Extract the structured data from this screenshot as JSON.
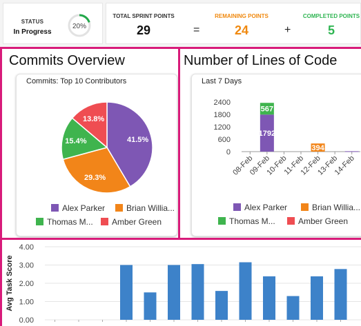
{
  "status": {
    "caption": "STATUS",
    "value": "In Progress",
    "progress_percent": 20,
    "progress_label": "20%",
    "ring_color": "#22a84a"
  },
  "points": {
    "total_caption": "TOTAL SPRINT POINTS",
    "total_value": "29",
    "equals": "=",
    "remaining_caption": "REMAINING POINTS",
    "remaining_value": "24",
    "plus": "+",
    "completed_caption": "COMPLETED POINTS",
    "completed_value": "5",
    "remaining_color": "#f0890f",
    "completed_color": "#2fb552"
  },
  "commits_panel": {
    "title": "Commits Overview",
    "card_title": "Commits: Top 10 Contributors",
    "legend": [
      {
        "label": "Alex Parker",
        "color": "#7e57b4"
      },
      {
        "label": "Brian Willia...",
        "color": "#f28519"
      },
      {
        "label": "Thomas M...",
        "color": "#3fb44e"
      },
      {
        "label": "Amber Green",
        "color": "#ef4d52"
      }
    ]
  },
  "lines_panel": {
    "title": "Number of Lines of Code",
    "card_title": "Last 7 Days",
    "legend": [
      {
        "label": "Alex Parker",
        "color": "#7e57b4"
      },
      {
        "label": "Brian Willia...",
        "color": "#f28519"
      },
      {
        "label": "Thomas M...",
        "color": "#3fb44e"
      },
      {
        "label": "Amber Green",
        "color": "#ef4d52"
      }
    ]
  },
  "chart_data": [
    {
      "type": "pie",
      "title": "Commits: Top 10 Contributors",
      "categories": [
        "Alex Parker",
        "Brian Willia...",
        "Thomas M...",
        "Amber Green"
      ],
      "values": [
        41.5,
        29.3,
        15.4,
        13.8
      ],
      "labels": [
        "41.5%",
        "29.3%",
        "15.4%",
        "13.8%"
      ],
      "colors": [
        "#7e57b4",
        "#f28519",
        "#3fb44e",
        "#ef4d52"
      ],
      "legend": "bottom"
    },
    {
      "type": "bar",
      "title": "Last 7 Days",
      "categories": [
        "08-Feb",
        "09-Feb",
        "10-Feb",
        "11-Feb",
        "12-Feb",
        "13-Feb",
        "14-Feb"
      ],
      "stacked": true,
      "series": [
        {
          "name": "Alex Parker",
          "color": "#7e57b4",
          "values": [
            0,
            1792,
            0,
            0,
            0,
            0,
            20
          ]
        },
        {
          "name": "Brian Willia...",
          "color": "#f28519",
          "values": [
            0,
            0,
            0,
            0,
            394,
            0,
            0
          ]
        },
        {
          "name": "Thomas M...",
          "color": "#3fb44e",
          "values": [
            0,
            567,
            0,
            0,
            0,
            0,
            0
          ]
        },
        {
          "name": "Amber Green",
          "color": "#ef4d52",
          "values": [
            0,
            0,
            0,
            0,
            0,
            0,
            0
          ]
        }
      ],
      "data_labels": [
        {
          "category": "09-Feb",
          "series": "Alex Parker",
          "text": "1792"
        },
        {
          "category": "09-Feb",
          "series": "Thomas M...",
          "text": "567"
        },
        {
          "category": "12-Feb",
          "series": "Brian Willia...",
          "text": "394"
        }
      ],
      "yticks": [
        "2400",
        "1800",
        "1200",
        "600",
        "0"
      ],
      "ylim": [
        0,
        2400
      ],
      "grid": false,
      "legend": "bottom"
    },
    {
      "type": "bar",
      "ylabel": "Avg Task Score",
      "ylim": [
        0,
        4
      ],
      "yticks": [
        "4.00",
        "3.00",
        "2.00",
        "1.00",
        "0.00"
      ],
      "values": [
        0,
        0,
        0,
        3.0,
        1.5,
        3.0,
        3.05,
        1.58,
        3.15,
        2.38,
        1.3,
        2.38,
        2.78
      ],
      "color": "#3d82c9",
      "grid": true
    }
  ]
}
